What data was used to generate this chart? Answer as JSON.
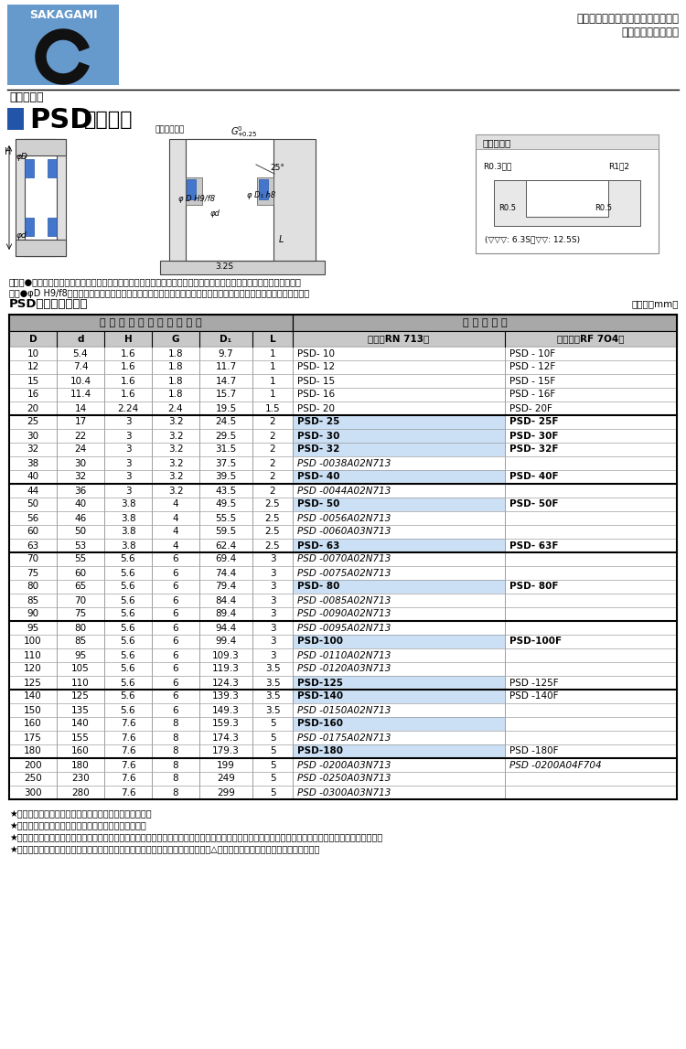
{
  "title_logo": "SAKAGAMI",
  "header_right": "【空気圧用】ピストン専用パッキン\n（一体みぞ装着可）",
  "section_title": "設計寸法表",
  "psd_title": "PSDパッキン",
  "table_title": "PSDパッキン寸法表",
  "unit_note": "（単位：mm）",
  "note1": "（注）●装着みぞの位置によっては一体みぞに装着できない場合があります。その場合は分割みぞ構造にしてください。",
  "note2": "　　●φD H9/f8は軸受方式により変わります。ウェアリング併用の場合は、ウェアリング寸法表をご参照ください。",
  "footer_notes": [
    "★ご注文・お問合せは、指示コードにてご指示ください。",
    "★表中、指示コードが色地の製品は在庫しております。",
    "★パッキンの指示コードが細字イタリック体の製品は、金型の有無を確認後ご手配ください。また、金型が廃棄されている場合は型代が必要となります。",
    "★パッキンは保管に適するよう包装されています。取扱い・保管方法については（△ご注意　巻頭ページ）をご参照ください。"
  ],
  "col_headers_row1": [
    "パ ッ キ ン お よ び み ぞ 寸 法",
    "指 示 コ ー ド"
  ],
  "col_headers_row2": [
    "D",
    "d",
    "H",
    "G",
    "D₁",
    "L",
    "標準（RN 713）",
    "耐熱用（RF 7O4）"
  ],
  "rows": [
    [
      10,
      5.4,
      1.6,
      1.8,
      9.7,
      1,
      "PSD- 10",
      "PSD - 10F",
      false,
      false
    ],
    [
      12,
      7.4,
      1.6,
      1.8,
      11.7,
      1,
      "PSD- 12",
      "PSD - 12F",
      false,
      false
    ],
    [
      15,
      10.4,
      1.6,
      1.8,
      14.7,
      1,
      "PSD- 15",
      "PSD - 15F",
      false,
      false
    ],
    [
      16,
      11.4,
      1.6,
      1.8,
      15.7,
      1,
      "PSD- 16",
      "PSD - 16F",
      false,
      false
    ],
    [
      20,
      14,
      2.24,
      2.4,
      19.5,
      1.5,
      "PSD- 20",
      "PSD- 20F",
      false,
      false
    ],
    [
      25,
      17,
      3,
      3.2,
      24.5,
      2,
      "PSD- 25",
      "PSD- 25F",
      true,
      true
    ],
    [
      30,
      22,
      3,
      3.2,
      29.5,
      2,
      "PSD- 30",
      "PSD- 30F",
      true,
      true
    ],
    [
      32,
      24,
      3,
      3.2,
      31.5,
      2,
      "PSD- 32",
      "PSD- 32F",
      true,
      true
    ],
    [
      38,
      30,
      3,
      3.2,
      37.5,
      2,
      "PSD -0038A02N713",
      "",
      false,
      false
    ],
    [
      40,
      32,
      3,
      3.2,
      39.5,
      2,
      "PSD- 40",
      "PSD- 40F",
      true,
      true
    ],
    [
      44,
      36,
      3,
      3.2,
      43.5,
      2,
      "PSD -0044A02N713",
      "",
      false,
      false
    ],
    [
      50,
      40,
      3.8,
      4,
      49.5,
      2.5,
      "PSD- 50",
      "PSD- 50F",
      true,
      true
    ],
    [
      56,
      46,
      3.8,
      4,
      55.5,
      2.5,
      "PSD -0056A02N713",
      "",
      false,
      false
    ],
    [
      60,
      50,
      3.8,
      4,
      59.5,
      2.5,
      "PSD -0060A03N713",
      "",
      false,
      false
    ],
    [
      63,
      53,
      3.8,
      4,
      62.4,
      2.5,
      "PSD- 63",
      "PSD- 63F",
      true,
      true
    ],
    [
      70,
      55,
      5.6,
      6,
      69.4,
      3,
      "PSD -0070A02N713",
      "",
      false,
      false
    ],
    [
      75,
      60,
      5.6,
      6,
      74.4,
      3,
      "PSD -0075A02N713",
      "",
      false,
      false
    ],
    [
      80,
      65,
      5.6,
      6,
      79.4,
      3,
      "PSD- 80",
      "PSD- 80F",
      true,
      true
    ],
    [
      85,
      70,
      5.6,
      6,
      84.4,
      3,
      "PSD -0085A02N713",
      "",
      false,
      false
    ],
    [
      90,
      75,
      5.6,
      6,
      89.4,
      3,
      "PSD -0090A02N713",
      "",
      false,
      false
    ],
    [
      95,
      80,
      5.6,
      6,
      94.4,
      3,
      "PSD -0095A02N713",
      "",
      false,
      false
    ],
    [
      100,
      85,
      5.6,
      6,
      99.4,
      3,
      "PSD-100",
      "PSD-100F",
      true,
      true
    ],
    [
      110,
      95,
      5.6,
      6,
      109.3,
      3,
      "PSD -0110A02N713",
      "",
      false,
      false
    ],
    [
      120,
      105,
      5.6,
      6,
      119.3,
      3.5,
      "PSD -0120A03N713",
      "",
      false,
      false
    ],
    [
      125,
      110,
      5.6,
      6,
      124.3,
      3.5,
      "PSD-125",
      "PSD -125F",
      true,
      false
    ],
    [
      140,
      125,
      5.6,
      6,
      139.3,
      3.5,
      "PSD-140",
      "PSD -140F",
      true,
      false
    ],
    [
      150,
      135,
      5.6,
      6,
      149.3,
      3.5,
      "PSD -0150A02N713",
      "",
      false,
      false
    ],
    [
      160,
      140,
      7.6,
      8,
      159.3,
      5,
      "PSD-160",
      "",
      true,
      false
    ],
    [
      175,
      155,
      7.6,
      8,
      174.3,
      5,
      "PSD -0175A02N713",
      "",
      false,
      false
    ],
    [
      180,
      160,
      7.6,
      8,
      179.3,
      5,
      "PSD-180",
      "PSD -180F",
      true,
      false
    ],
    [
      200,
      180,
      7.6,
      8,
      199,
      5,
      "PSD -0200A03N713",
      "PSD -0200A04F704",
      false,
      false
    ],
    [
      250,
      230,
      7.6,
      8,
      249,
      5,
      "PSD -0250A03N713",
      "",
      false,
      false
    ],
    [
      300,
      280,
      7.6,
      8,
      299,
      5,
      "PSD -0300A03N713",
      "",
      false,
      false
    ]
  ],
  "group_sep_indices": [
    5,
    10,
    15,
    20,
    25,
    30
  ],
  "highlight_color": "#cce0f5",
  "header_bg": "#c8c8c8",
  "group_header_bg": "#a8a8a8",
  "logo_bg": "#6699cc",
  "bg_color": "#ffffff"
}
